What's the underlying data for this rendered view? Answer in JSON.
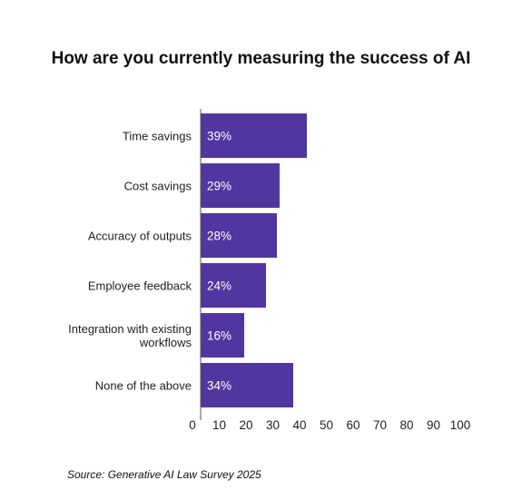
{
  "chart_data": {
    "type": "bar",
    "orientation": "horizontal",
    "title": "How are you currently measuring the success of AI",
    "categories": [
      [
        "Time savings"
      ],
      [
        "Cost savings"
      ],
      [
        "Accuracy of outputs"
      ],
      [
        "Employee feedback"
      ],
      [
        "Integration with existing",
        "workflows"
      ],
      [
        "None of the above"
      ]
    ],
    "values": [
      39,
      29,
      28,
      24,
      16,
      34
    ],
    "value_labels": [
      "39%",
      "29%",
      "28%",
      "24%",
      "16%",
      "34%"
    ],
    "xlim": [
      0,
      100
    ],
    "xticks": [
      0,
      10,
      20,
      30,
      40,
      50,
      60,
      70,
      80,
      90,
      100
    ],
    "grid": false,
    "bar_color": "#5236a0",
    "source": "Source: Generative AI Law Survey 2025"
  }
}
